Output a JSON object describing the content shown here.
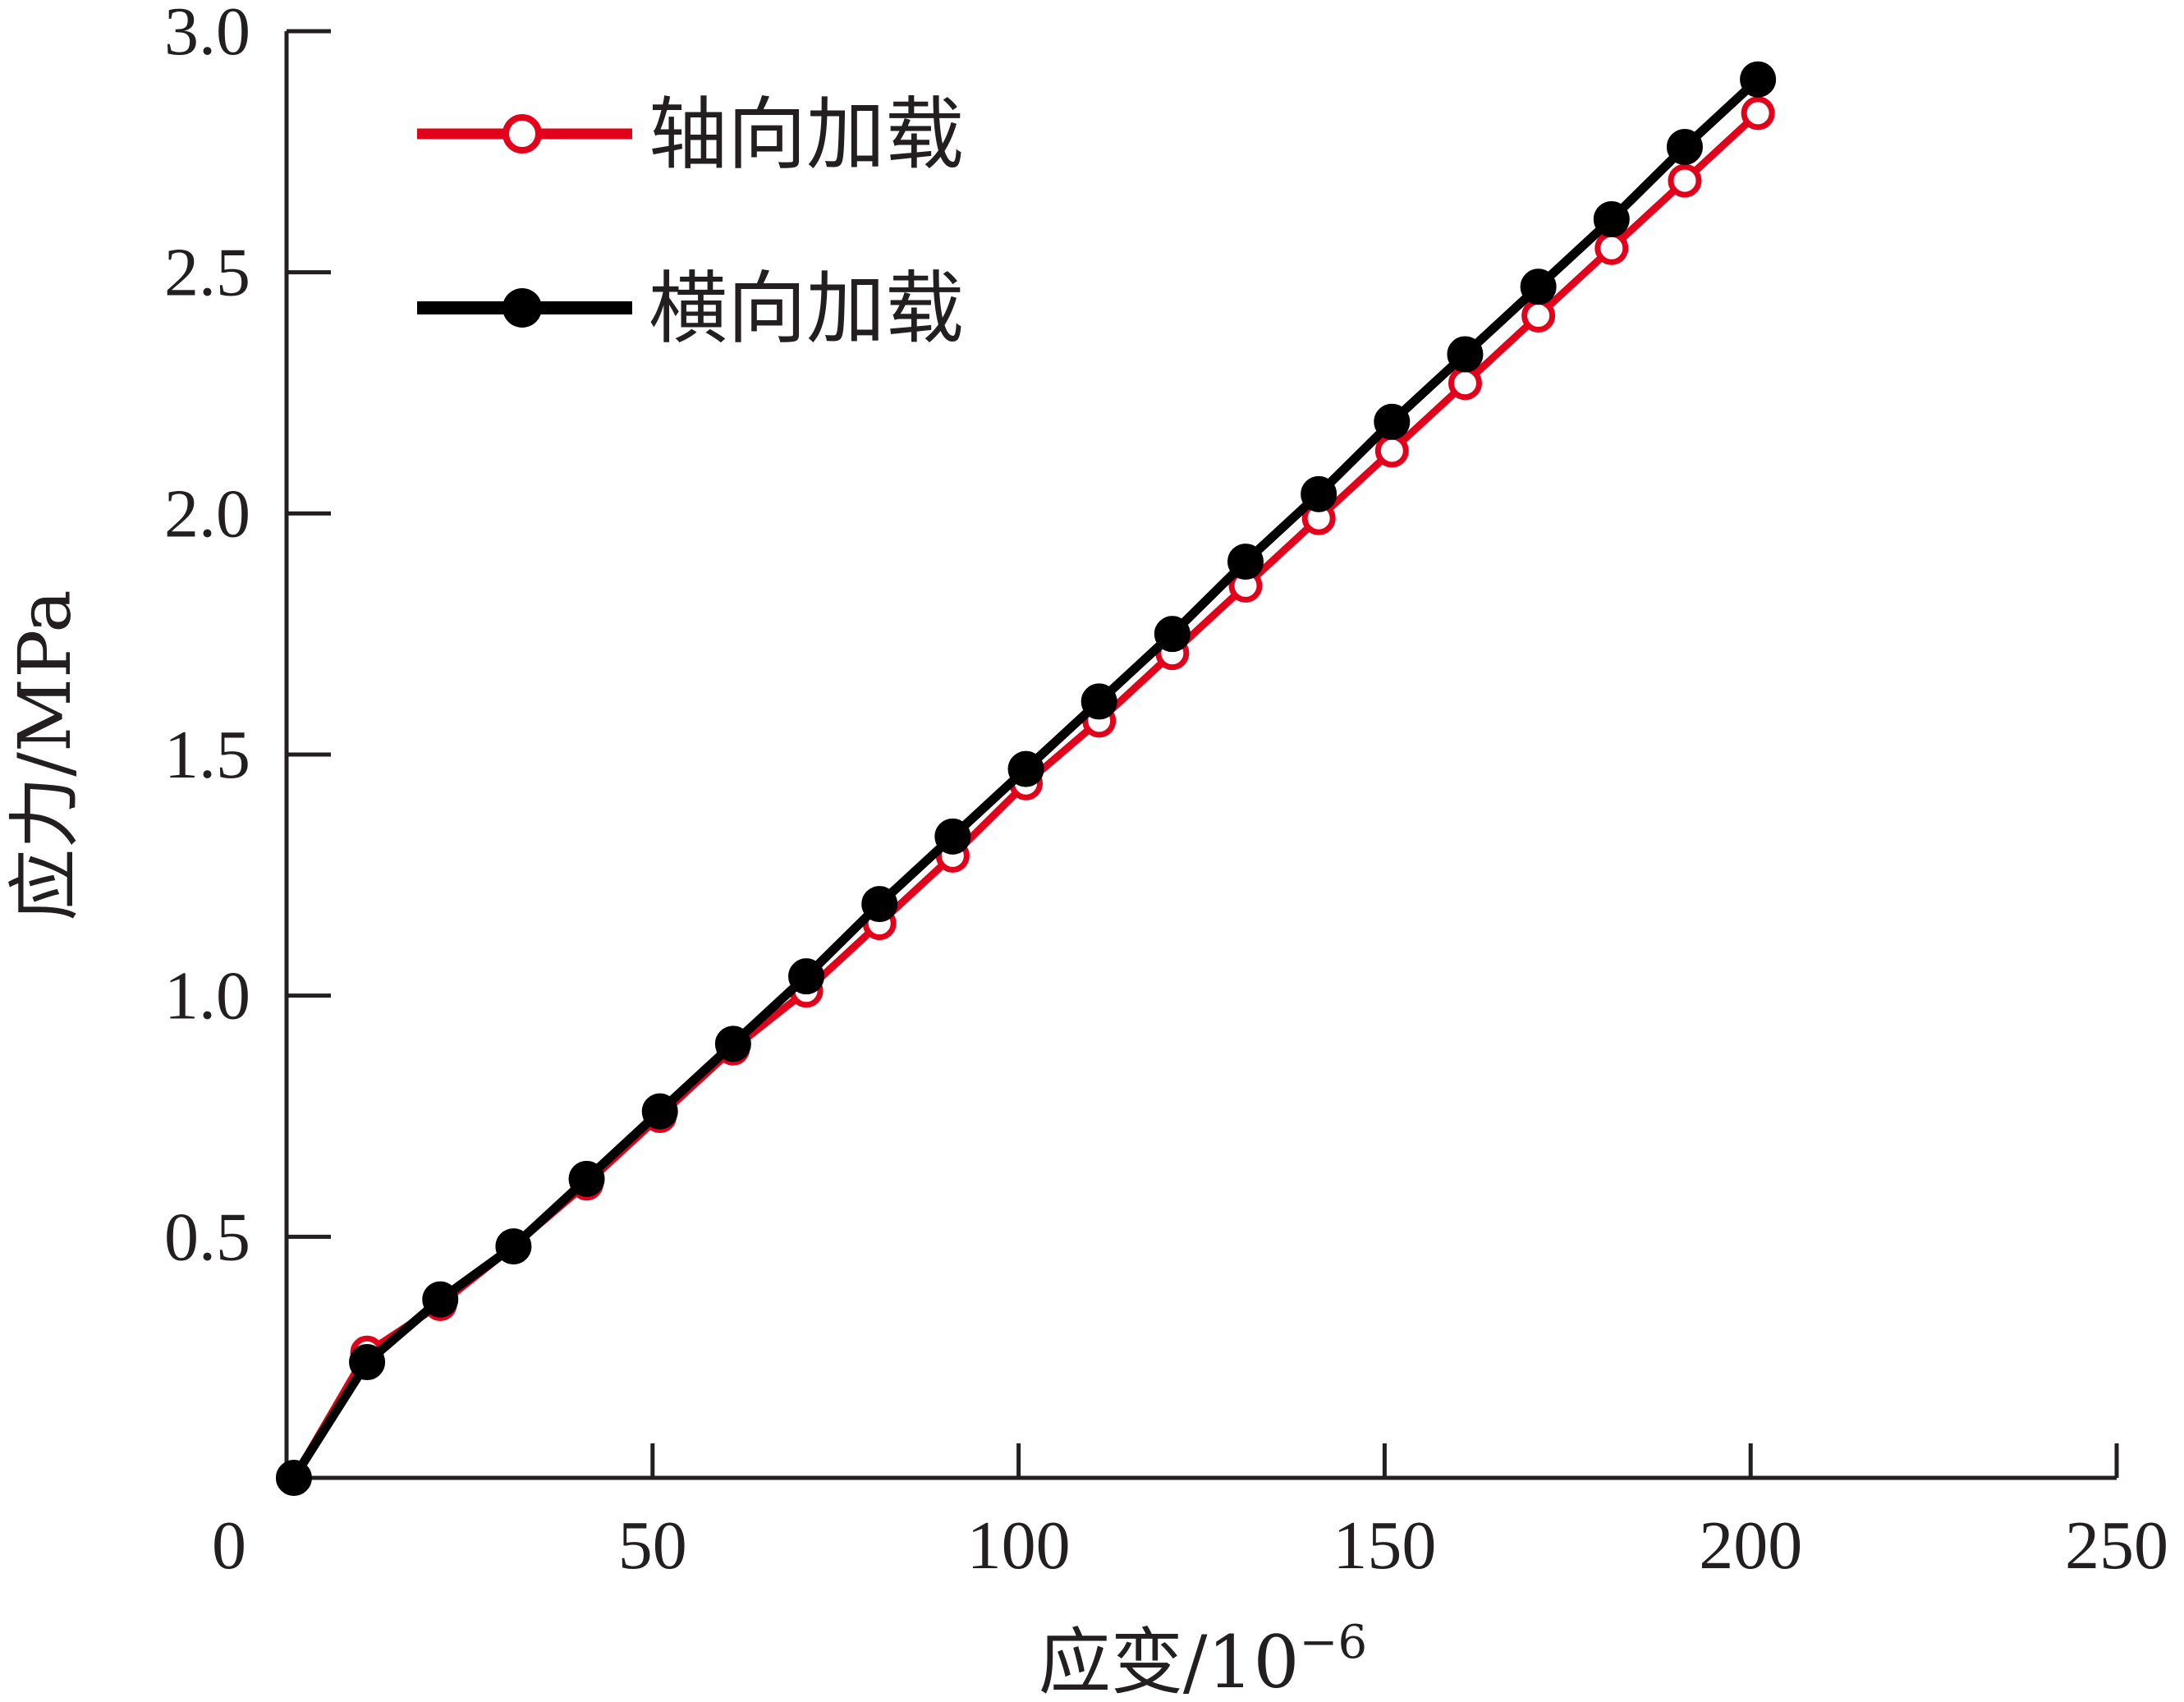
{
  "chart_data": {
    "type": "line",
    "xlabel": "应变/10",
    "xlabel_sup": "−6",
    "ylabel": "应力/MPa",
    "xlim": [
      0,
      250
    ],
    "ylim": [
      0,
      3.0
    ],
    "xticks": [
      0,
      50,
      100,
      150,
      200,
      250
    ],
    "yticks": [
      0.5,
      1.0,
      1.5,
      2.0,
      2.5,
      3.0
    ],
    "xtick_labels": [
      "0",
      "50",
      "100",
      "150",
      "200",
      "250"
    ],
    "ytick_labels": [
      "0.5",
      "1.0",
      "1.5",
      "2.0",
      "2.5",
      "3.0"
    ],
    "grid": false,
    "legend_position": "top-left",
    "series": [
      {
        "name": "轴向加载",
        "color": "#e2001a",
        "marker": "open-circle",
        "x": [
          1,
          11,
          21,
          31,
          41,
          51,
          61,
          71,
          81,
          91,
          101,
          111,
          121,
          131,
          141,
          151,
          161,
          171,
          181,
          191,
          201
        ],
        "y": [
          0.0,
          0.26,
          0.36,
          0.48,
          0.61,
          0.75,
          0.89,
          1.01,
          1.15,
          1.29,
          1.44,
          1.57,
          1.71,
          1.85,
          1.99,
          2.13,
          2.27,
          2.41,
          2.55,
          2.69,
          2.83
        ]
      },
      {
        "name": "横向加载",
        "color": "#000000",
        "marker": "filled-circle",
        "x": [
          1,
          11,
          21,
          31,
          41,
          51,
          61,
          71,
          81,
          91,
          101,
          111,
          121,
          131,
          141,
          151,
          161,
          171,
          181,
          191,
          201
        ],
        "y": [
          0.0,
          0.24,
          0.37,
          0.48,
          0.62,
          0.76,
          0.9,
          1.04,
          1.19,
          1.33,
          1.47,
          1.61,
          1.75,
          1.9,
          2.04,
          2.19,
          2.33,
          2.47,
          2.61,
          2.76,
          2.9
        ]
      }
    ]
  }
}
